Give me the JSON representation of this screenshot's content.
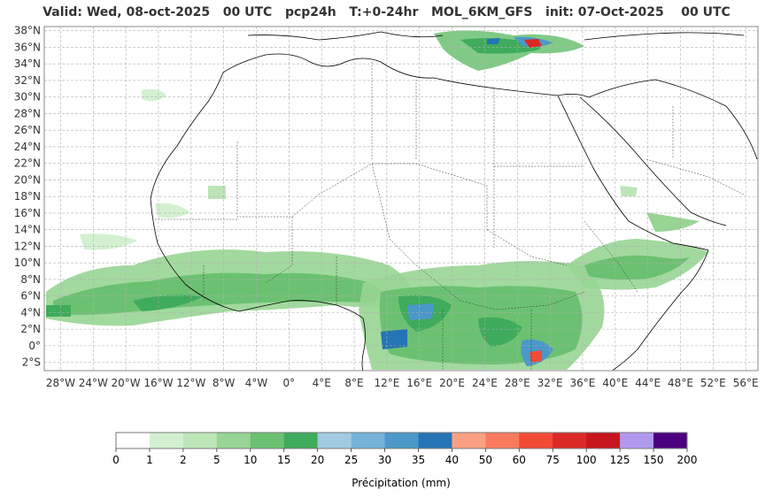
{
  "title": "Valid: Wed, 08-oct-2025   00 UTC   pcp24h   T:+0-24hr   MOL_6KM_GFS   init: 07-Oct-2025    00 UTC",
  "lat_labels": [
    "38°N",
    "36°N",
    "34°N",
    "32°N",
    "30°N",
    "28°N",
    "26°N",
    "24°N",
    "22°N",
    "20°N",
    "18°N",
    "16°N",
    "14°N",
    "12°N",
    "10°N",
    "8°N",
    "6°N",
    "4°N",
    "2°N",
    "0°",
    "2°S"
  ],
  "lon_labels": [
    "28°W",
    "24°W",
    "20°W",
    "16°W",
    "12°W",
    "8°W",
    "4°W",
    "0°",
    "4°E",
    "8°E",
    "12°E",
    "16°E",
    "20°E",
    "24°E",
    "28°E",
    "32°E",
    "36°E",
    "40°E",
    "44°E",
    "48°E",
    "52°E",
    "56°E"
  ],
  "colorbar": {
    "label": "Précipitation (mm)",
    "ticks": [
      "0",
      "1",
      "2",
      "5",
      "10",
      "15",
      "20",
      "25",
      "30",
      "35",
      "40",
      "50",
      "60",
      "75",
      "100",
      "125",
      "150",
      "200"
    ],
    "colors": [
      "#ffffff",
      "#d3f1d1",
      "#bde5b8",
      "#98d594",
      "#6bc171",
      "#3fab5c",
      "#a1cbe2",
      "#75b3d8",
      "#4b98c9",
      "#2574b5",
      "#fca083",
      "#fb7a5e",
      "#f14a35",
      "#db2a26",
      "#c6151d",
      "#b198ef",
      "#4b0080"
    ]
  }
}
